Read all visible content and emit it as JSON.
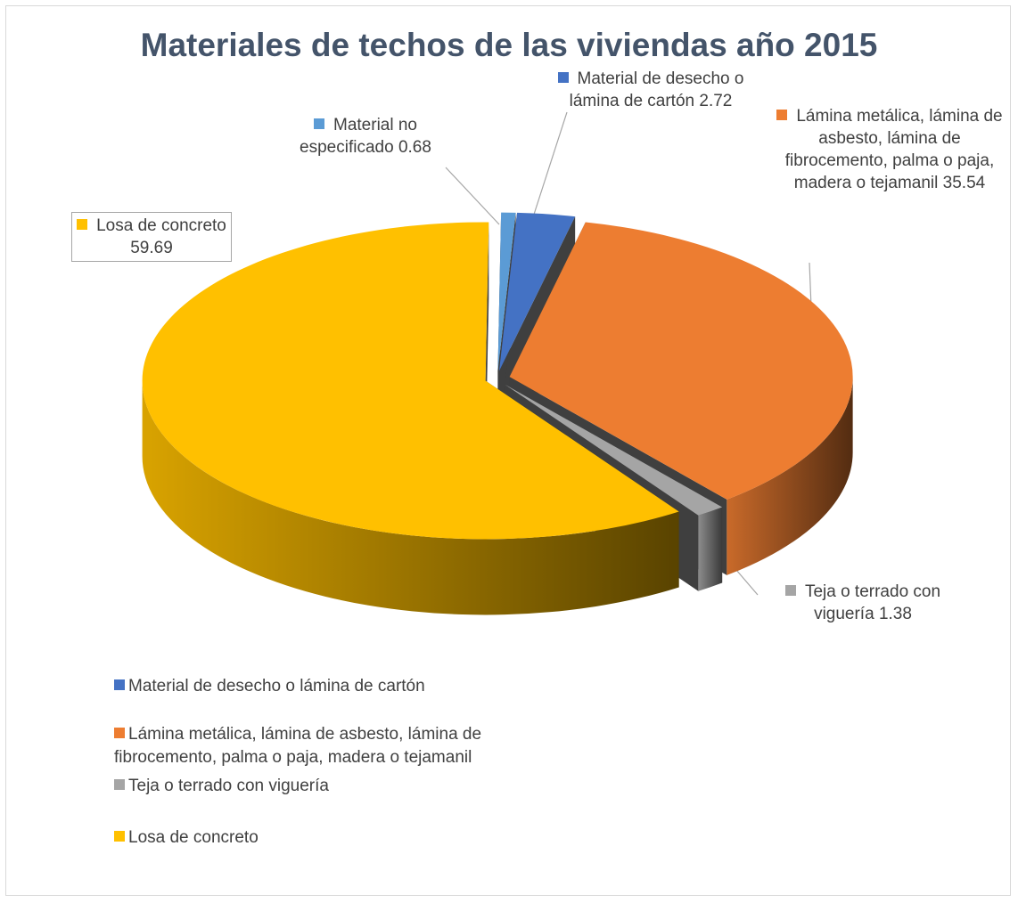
{
  "chart_data": {
    "type": "pie3d",
    "title": "Materiales de techos de las viviendas año 2015",
    "categories": [
      "Material de desecho o lámina de cartón",
      "Lámina metálica, lámina de asbesto, lámina de fibrocemento, palma o paja, madera o tejamanil",
      "Teja o terrado con viguería",
      "Losa de concreto",
      "Material no especificado"
    ],
    "values": [
      2.72,
      35.54,
      1.38,
      59.69,
      0.68
    ],
    "colors": [
      "#4472c4",
      "#ed7d31",
      "#a5a5a5",
      "#ffc000",
      "#5b9bd5"
    ],
    "legend_items": 4
  }
}
